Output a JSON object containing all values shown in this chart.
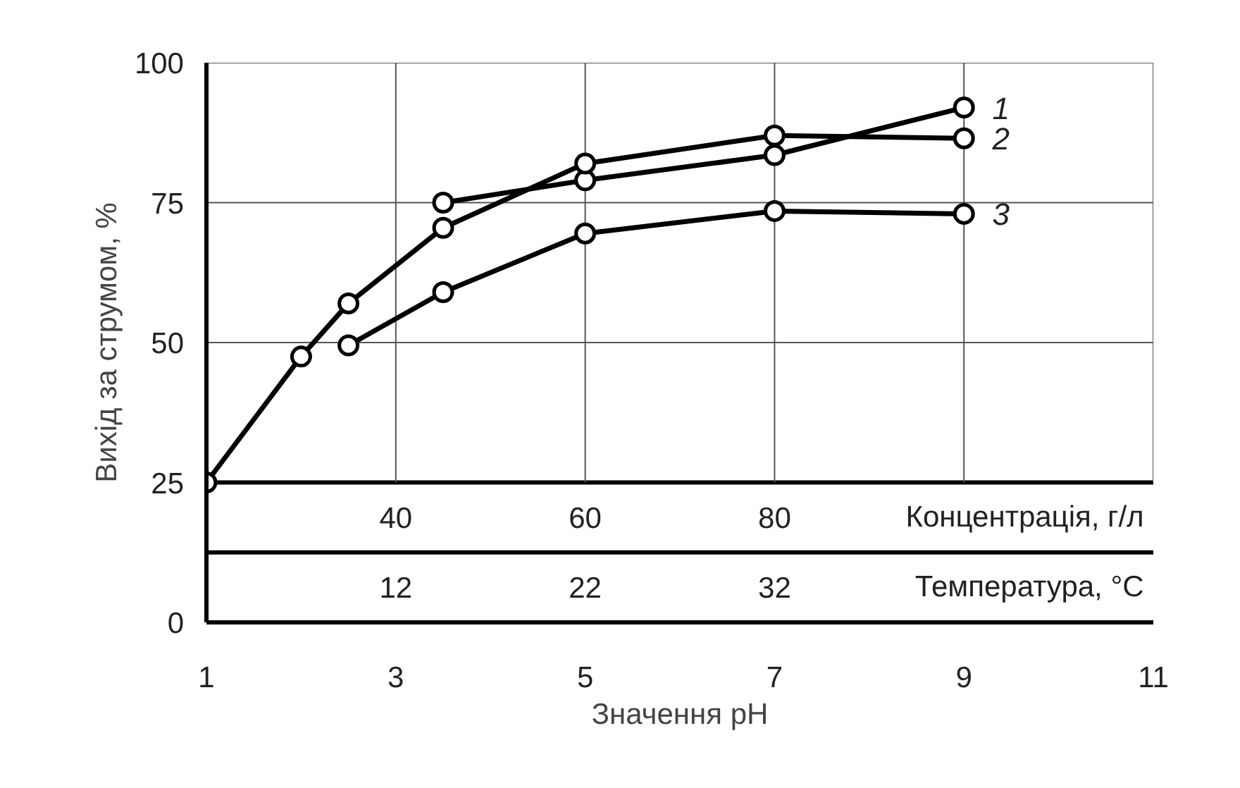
{
  "chart_data": {
    "type": "line",
    "ylabel": "Вихід за струмом, %",
    "xlabel": "Значення pH",
    "x2label": "Концентрація, г/л",
    "annotations": [
      "12",
      "22",
      "32",
      "Температура, °C"
    ],
    "ref_lines": [
      {
        "axis": "y",
        "value": 25,
        "color": "#000000"
      },
      {
        "axis": "y",
        "value": 12.5,
        "color": "#000000"
      }
    ],
    "xlim": [
      1,
      11
    ],
    "xticks": [
      1,
      3,
      5,
      7,
      9,
      11
    ],
    "ylim": [
      0,
      100
    ],
    "yticks": [
      0,
      25,
      50,
      75,
      100
    ],
    "x2lim": [
      20,
      120
    ],
    "x2ticks": [
      40,
      60,
      80
    ],
    "grid": true,
    "marker": "circle",
    "line_style": "solid",
    "series": [
      {
        "name": "1",
        "color": "#000000",
        "x": [
          3.5,
          5,
          7,
          9
        ],
        "values": [
          75,
          79,
          83.5,
          92
        ]
      },
      {
        "name": "2",
        "color": "#000000",
        "x": [
          1,
          2,
          2.5,
          3.5,
          5,
          7,
          9
        ],
        "values": [
          25,
          47.5,
          57,
          70.5,
          82,
          87,
          86.5
        ]
      },
      {
        "name": "3",
        "color": "#000000",
        "x": [
          2.5,
          3.5,
          5,
          7,
          9
        ],
        "values": [
          49.5,
          59,
          69.5,
          73.5,
          73
        ]
      }
    ]
  }
}
